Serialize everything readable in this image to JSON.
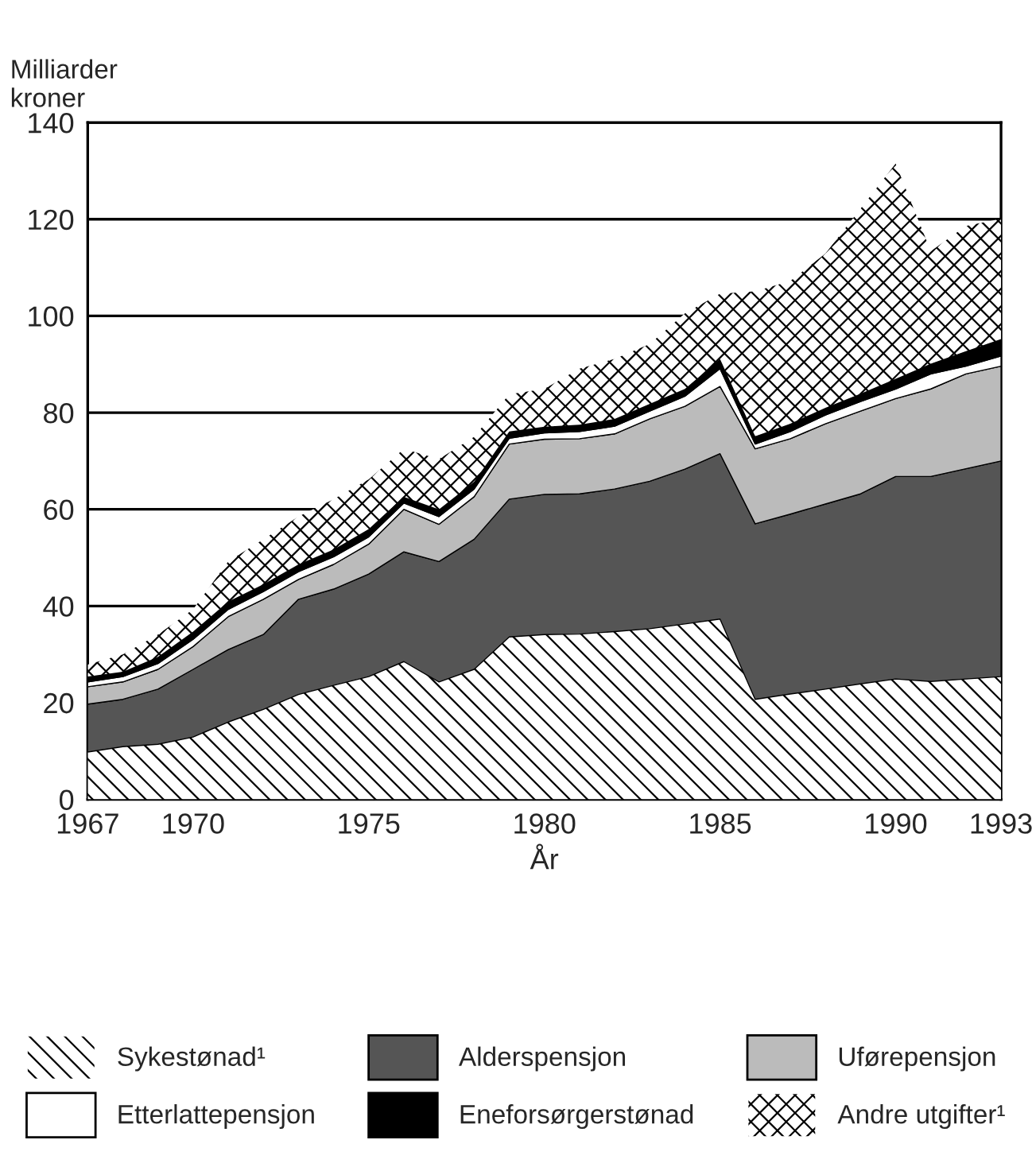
{
  "chart_data": {
    "type": "area",
    "stacked": true,
    "xlabel": "År",
    "ylabel": "Milliarder\nkroner",
    "x": [
      1967,
      1968,
      1969,
      1970,
      1971,
      1972,
      1973,
      1974,
      1975,
      1976,
      1977,
      1978,
      1979,
      1980,
      1981,
      1982,
      1983,
      1984,
      1985,
      1986,
      1987,
      1988,
      1989,
      1990,
      1991,
      1992,
      1993
    ],
    "xlim": [
      1967,
      1993
    ],
    "xticks": [
      1967,
      1970,
      1975,
      1980,
      1985,
      1990,
      1993
    ],
    "ylim": [
      0,
      140
    ],
    "yticks": [
      0,
      20,
      40,
      60,
      80,
      100,
      120,
      140
    ],
    "grid": "y",
    "legend": "bottom",
    "series": [
      {
        "name": "Sykestønad¹",
        "color": "#ffffff",
        "values": [
          9.8,
          10.9,
          11.4,
          12.9,
          16.0,
          18.6,
          21.7,
          23.6,
          25.4,
          28.5,
          24.3,
          26.9,
          33.6,
          34.1,
          34.2,
          34.7,
          35.3,
          36.3,
          37.3,
          20.7,
          21.8,
          22.8,
          23.9,
          24.9,
          24.4,
          24.9,
          25.4
        ]
      },
      {
        "name": "Alderspensjon",
        "color": "#555555",
        "values": [
          9.9,
          9.8,
          11.4,
          14.0,
          15.0,
          15.5,
          19.7,
          19.9,
          21.2,
          22.7,
          24.9,
          26.9,
          28.5,
          29.0,
          29.0,
          29.5,
          30.5,
          32.0,
          34.2,
          36.3,
          37.2,
          38.3,
          39.3,
          41.9,
          42.4,
          43.5,
          44.6
        ]
      },
      {
        "name": "Uførepensjon",
        "color": "#bbbbbb",
        "values": [
          3.6,
          3.6,
          4.1,
          4.7,
          6.8,
          7.3,
          4.1,
          5.1,
          6.2,
          8.8,
          7.7,
          8.8,
          11.4,
          11.4,
          11.4,
          11.4,
          12.9,
          13.0,
          13.9,
          15.5,
          15.6,
          16.6,
          17.1,
          16.1,
          18.1,
          19.6,
          19.6
        ]
      },
      {
        "name": "Etterlattepensjon",
        "color": "#ffffff",
        "values": [
          1.0,
          1.1,
          1.2,
          1.5,
          1.5,
          1.6,
          1.6,
          1.6,
          1.5,
          1.3,
          1.6,
          1.6,
          1.2,
          1.3,
          1.5,
          1.6,
          1.6,
          2.1,
          3.7,
          1.0,
          1.5,
          1.8,
          2.0,
          2.0,
          3.1,
          1.6,
          2.1
        ]
      },
      {
        "name": "Eneforsørgerstønad",
        "color": "#000000",
        "values": [
          1.1,
          1.0,
          1.4,
          1.6,
          1.6,
          1.5,
          1.5,
          1.5,
          1.6,
          1.3,
          1.5,
          1.5,
          1.4,
          1.3,
          1.4,
          1.5,
          1.5,
          1.5,
          2.0,
          1.6,
          1.6,
          1.5,
          1.6,
          2.1,
          2.1,
          3.1,
          3.5
        ]
      },
      {
        "name": "Andre utgifter¹",
        "color": "#ffffff",
        "values": [
          2.5,
          3.6,
          4.6,
          4.6,
          8.3,
          9.3,
          9.9,
          10.4,
          10.3,
          9.9,
          10.4,
          9.3,
          7.7,
          7.8,
          11.6,
          12.4,
          12.4,
          15.6,
          13.5,
          30.0,
          29.5,
          31.9,
          38.3,
          44.5,
          23.3,
          25.9,
          24.9
        ]
      }
    ]
  }
}
